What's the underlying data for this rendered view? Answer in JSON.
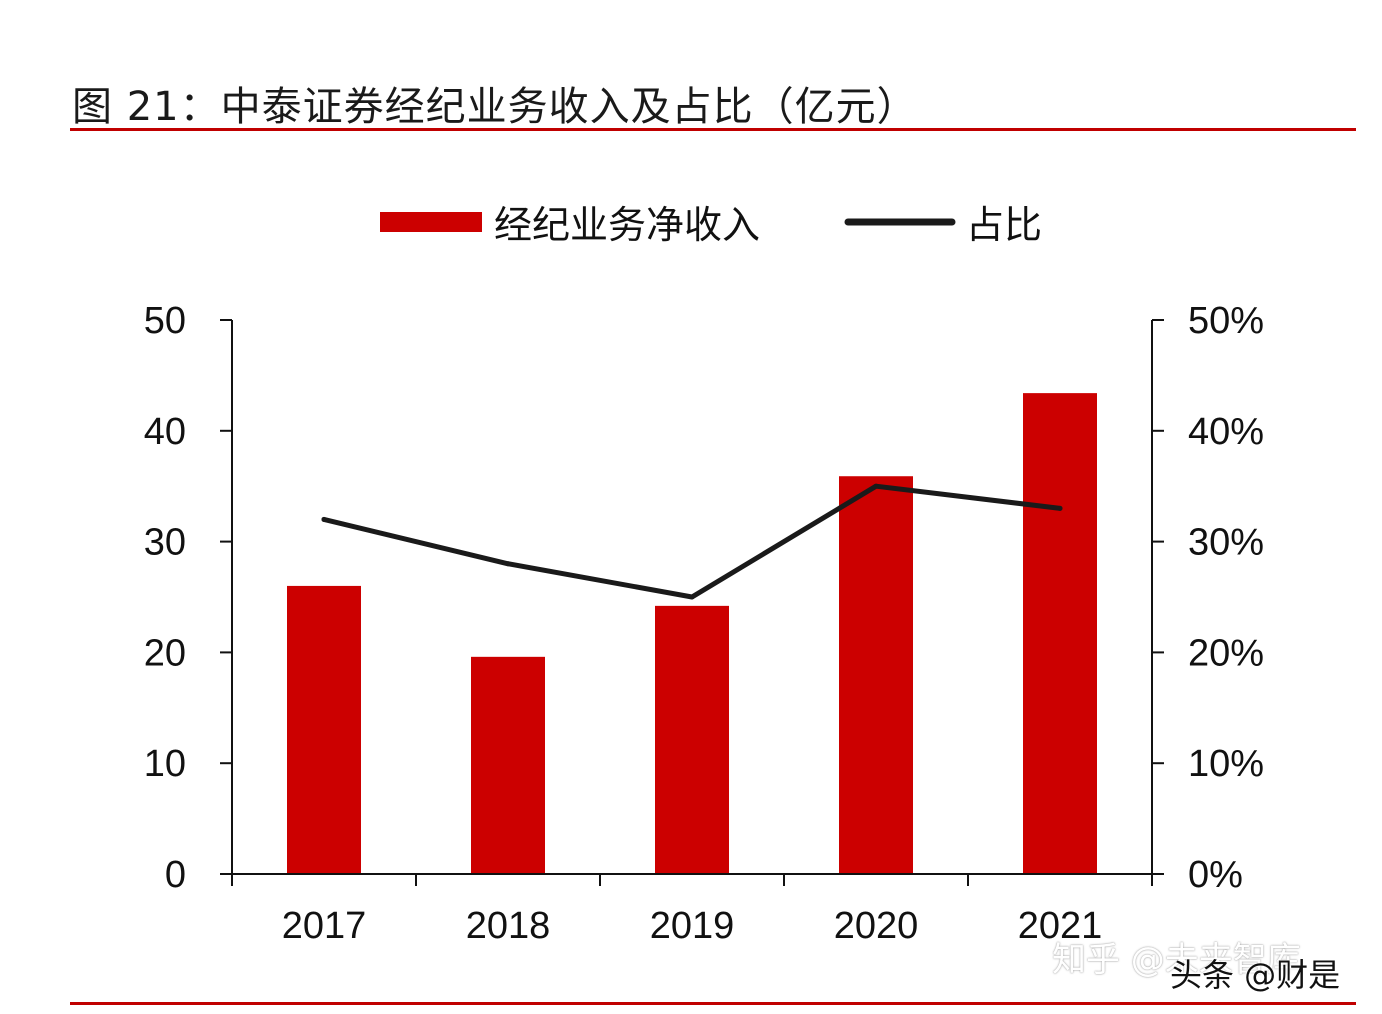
{
  "figure": {
    "title": "图 21：中泰证券经纪业务收入及占比（亿元）"
  },
  "chart_data": {
    "type": "bar",
    "title": "",
    "categories": [
      "2017",
      "2018",
      "2019",
      "2020",
      "2021"
    ],
    "series": [
      {
        "name": "经纪业务净收入",
        "type": "bar",
        "axis": "left",
        "color": "#cc0000",
        "values": [
          26.0,
          19.6,
          24.2,
          35.9,
          43.4
        ]
      },
      {
        "name": "占比",
        "type": "line",
        "axis": "right",
        "color": "#1a1a1a",
        "values": [
          0.32,
          0.28,
          0.25,
          0.35,
          0.33
        ]
      }
    ],
    "y_left": {
      "range": [
        0,
        50
      ],
      "ticks": [
        0,
        10,
        20,
        30,
        40,
        50
      ],
      "tick_labels": [
        "0",
        "10",
        "20",
        "30",
        "40",
        "50"
      ]
    },
    "y_right": {
      "range": [
        0,
        0.5
      ],
      "ticks": [
        0,
        0.1,
        0.2,
        0.3,
        0.4,
        0.5
      ],
      "tick_labels": [
        "0%",
        "10%",
        "20%",
        "30%",
        "40%",
        "50%"
      ]
    },
    "xlabel": "",
    "ylabel": "",
    "grid": false,
    "legend_position": "top-center"
  },
  "watermarks": {
    "line1": "知乎 @未来智库",
    "line2": "头条 @财是"
  }
}
